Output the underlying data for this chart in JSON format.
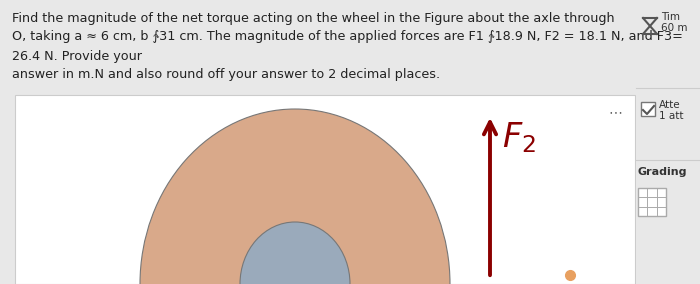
{
  "text_lines": [
    "Find the magnitude of the net torque acting on the wheel in the Figure about the axle through",
    "O, taking a ≈ 6 cm, b ∱31 cm. The magnitude of the applied forces are F1 ∱18.9 N, F2 = 18.1 N, and F3=",
    "26.4 N. Provide your",
    "answer in m.N and also round off your answer to 2 decimal places."
  ],
  "text_color": "#222222",
  "text_fontsize": 9.2,
  "bg_color": "#e8e8e8",
  "panel_bg": "#ffffff",
  "right_panel_bg": "#e8e8e8",
  "outer_circle_color": "#D9A98A",
  "inner_circle_color": "#9AAABB",
  "arrow_color": "#8B0000",
  "F2_color": "#8B0000",
  "small_dot_color": "#E8A060"
}
